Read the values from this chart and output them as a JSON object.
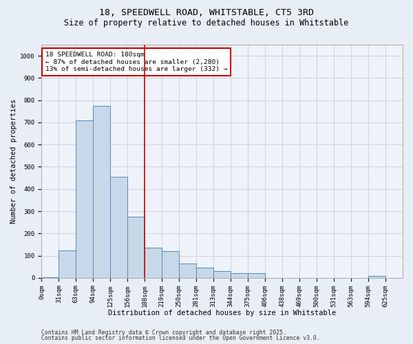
{
  "title": "18, SPEEDWELL ROAD, WHITSTABLE, CT5 3RD",
  "subtitle": "Size of property relative to detached houses in Whitstable",
  "xlabel": "Distribution of detached houses by size in Whitstable",
  "ylabel": "Number of detached properties",
  "bins": [
    "0sqm",
    "31sqm",
    "63sqm",
    "94sqm",
    "125sqm",
    "156sqm",
    "188sqm",
    "219sqm",
    "250sqm",
    "281sqm",
    "313sqm",
    "344sqm",
    "375sqm",
    "406sqm",
    "438sqm",
    "469sqm",
    "500sqm",
    "531sqm",
    "563sqm",
    "594sqm",
    "625sqm"
  ],
  "values": [
    2,
    125,
    710,
    775,
    455,
    275,
    135,
    120,
    65,
    45,
    30,
    20,
    20,
    0,
    0,
    0,
    0,
    0,
    0,
    10,
    0
  ],
  "bar_color": "#c8d8e8",
  "bar_edge_color": "#5588bb",
  "vline_x_index": 6,
  "vline_color": "#cc0000",
  "ylim": [
    0,
    1050
  ],
  "yticks": [
    0,
    100,
    200,
    300,
    400,
    500,
    600,
    700,
    800,
    900,
    1000
  ],
  "annotation_text": "18 SPEEDWELL ROAD: 180sqm\n← 87% of detached houses are smaller (2,280)\n13% of semi-detached houses are larger (332) →",
  "annotation_box_color": "#ffffff",
  "annotation_box_edge": "#cc0000",
  "footer1": "Contains HM Land Registry data © Crown copyright and database right 2025.",
  "footer2": "Contains public sector information licensed under the Open Government Licence v3.0.",
  "bg_color": "#e8eef5",
  "plot_bg_color": "#eef2fa",
  "title_fontsize": 9.5,
  "subtitle_fontsize": 8.5,
  "axis_label_fontsize": 7.5,
  "tick_fontsize": 6.5,
  "annotation_fontsize": 6.8,
  "footer_fontsize": 5.8,
  "ylabel_fontsize": 7.5
}
